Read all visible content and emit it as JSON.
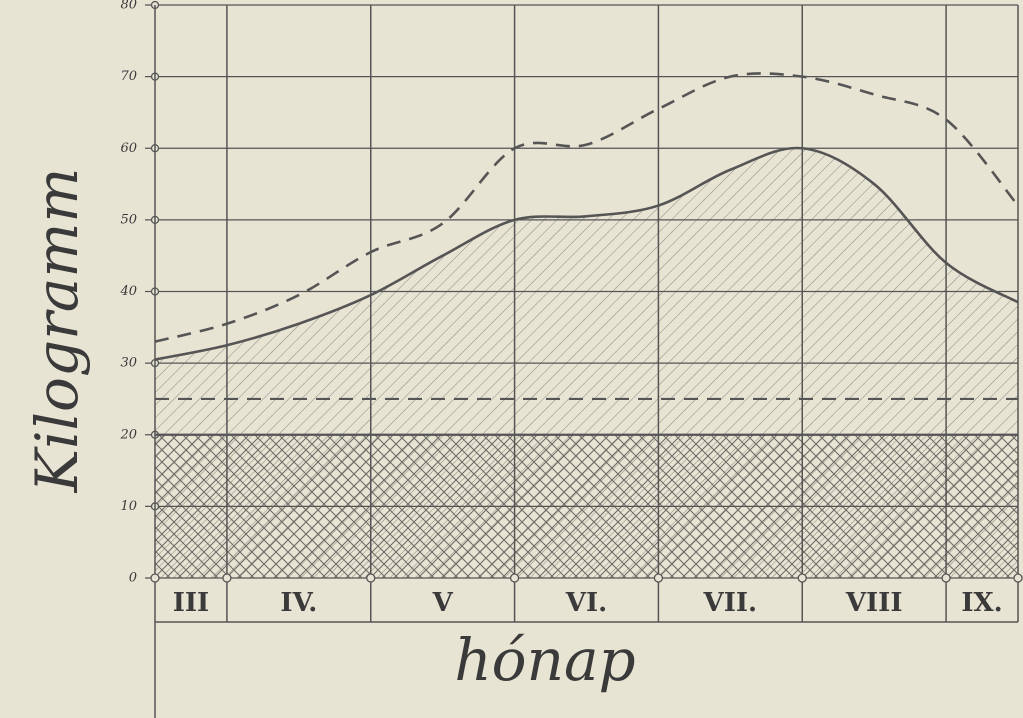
{
  "chart_data": {
    "type": "line",
    "ylabel": "Kilogramm",
    "xlabel": "hónap",
    "categories": [
      "III",
      "IV.",
      "V",
      "VI.",
      "VII.",
      "VIII",
      "IX."
    ],
    "x": [
      3.5,
      4,
      4.5,
      5,
      5.5,
      6,
      6.5,
      7,
      7.5,
      8,
      8.5,
      9,
      9.5
    ],
    "xlim": [
      3.5,
      9.5
    ],
    "ylim": [
      0,
      80
    ],
    "yticks": [
      0,
      10,
      20,
      30,
      40,
      50,
      60,
      70,
      80
    ],
    "grid": true,
    "series": [
      {
        "color": "#555555",
        "style": "solid",
        "hatch": "diagonal",
        "values": [
          30.5,
          32.5,
          35.5,
          39.5,
          45,
          50,
          50.5,
          52,
          57,
          60,
          55,
          44,
          38.5
        ]
      },
      {
        "color": "#555555",
        "style": "dashed",
        "values": [
          33,
          35.5,
          39.5,
          45.5,
          49.5,
          60,
          60.5,
          65.5,
          70,
          70,
          67.5,
          64,
          52
        ]
      }
    ],
    "hlines": [
      {
        "value": 25,
        "color": "#555555",
        "style": "dashed"
      },
      {
        "value": 20,
        "color": "#555555",
        "style": "solid",
        "hatch": "cross"
      }
    ]
  }
}
